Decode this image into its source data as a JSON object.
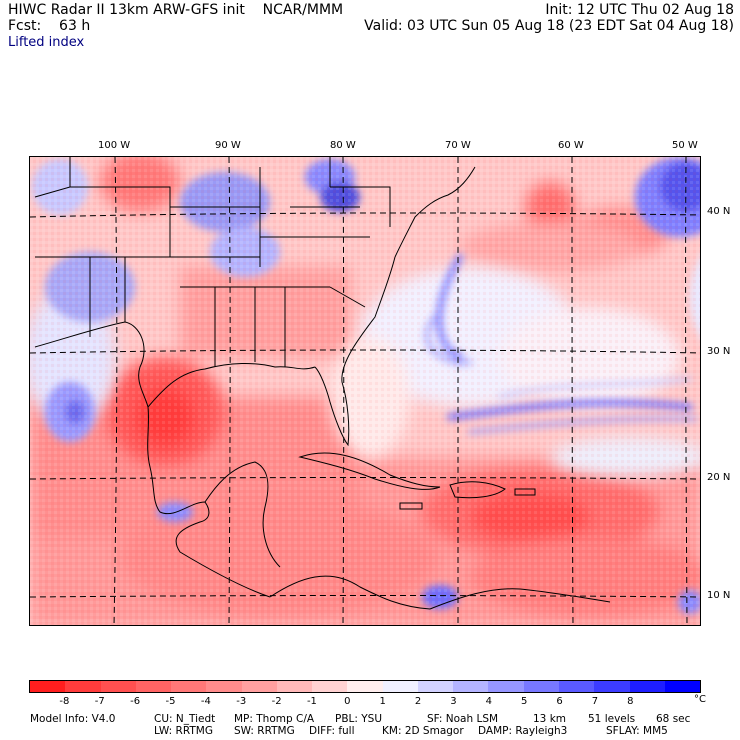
{
  "header": {
    "line1_left": "HIWC Radar II 13km ARW-GFS init    NCAR/MMM",
    "line2_left": "Fcst:    63 h",
    "line1_right": "Init: 12 UTC Thu 02 Aug 18",
    "line2_right": "Valid: 03 UTC Sun 05 Aug 18 (23 EDT Sat 04 Aug 18)",
    "field_name": "Lifted index"
  },
  "map": {
    "longitude_labels": [
      "100 W",
      "90 W",
      "80 W",
      "70 W",
      "60 W",
      "50 W"
    ],
    "latitude_labels": [
      "40 N",
      "30 N",
      "20 N",
      "10 N"
    ]
  },
  "colorbar": {
    "labels": [
      "-8",
      "-7",
      "-6",
      "-5",
      "-4",
      "-3",
      "-2",
      "-1",
      "0",
      "1",
      "2",
      "3",
      "4",
      "5",
      "6",
      "7",
      "8"
    ],
    "unit": "°C",
    "colors": [
      "#ff1e1e",
      "#ff3c3c",
      "#ff5050",
      "#ff6464",
      "#ff7878",
      "#ff8c8c",
      "#ffa0a0",
      "#ffb9b9",
      "#ffd2d2",
      "#ffeeee",
      "#f0f0ff",
      "#d2d2ff",
      "#b4b4ff",
      "#9696ff",
      "#7878ff",
      "#5a5aff",
      "#3c3cff",
      "#1e1eff",
      "#0000ff"
    ]
  },
  "footer": {
    "model_info": "Model Info: V4.0",
    "cu": "CU: N_Tiedt",
    "mp": "MP: Thomp C/A",
    "pbl": "PBL: YSU",
    "sf": "SF: Noah LSM",
    "res": "13 km",
    "levels": "51 levels",
    "dt": "68 sec",
    "lw": "LW: RRTMG",
    "sw": "SW: RRTMG",
    "diff": "DIFF: full",
    "km": "KM: 2D Smagor",
    "damp": "DAMP: Rayleigh3",
    "sflay": "SFLAY: MM5"
  }
}
